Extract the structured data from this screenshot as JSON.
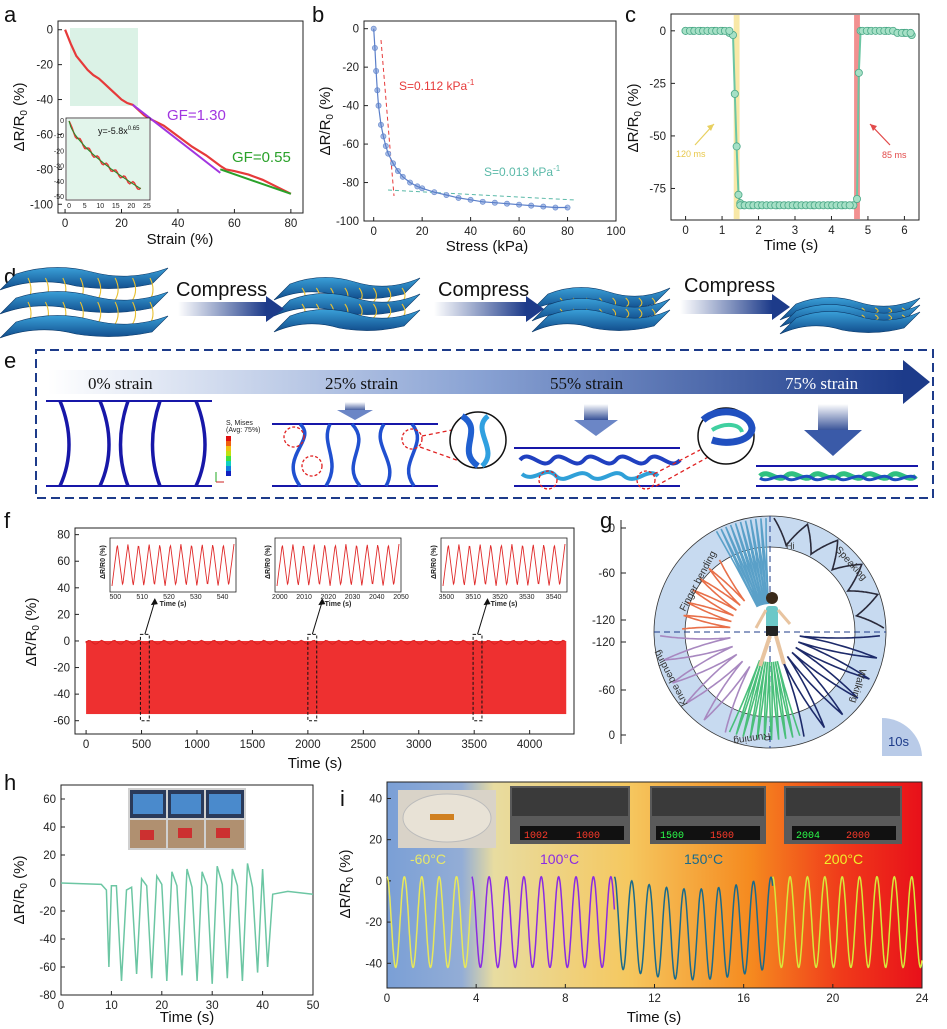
{
  "panels": {
    "a": "a",
    "b": "b",
    "c": "c",
    "d": "d",
    "e": "e",
    "f": "f",
    "g": "g",
    "h": "h",
    "i": "i"
  },
  "colors": {
    "red": "#e63a3a",
    "teal": "#6cc6a3",
    "blue": "#5b7fc9",
    "purple": "#a135e0",
    "green": "#2aa12a",
    "navy": "#1f3b9a",
    "dashblue": "#1d3b8a"
  },
  "chart_data": [
    {
      "id": "a",
      "type": "line",
      "xlabel": "Strain (%)",
      "ylabel": "ΔR/R0 (%)",
      "xlim": [
        0,
        80
      ],
      "ylim": [
        -100,
        0
      ],
      "xticks": [
        0,
        20,
        40,
        60,
        80
      ],
      "yticks": [
        0,
        -20,
        -40,
        -60,
        -80,
        -100
      ],
      "x": [
        0,
        2,
        4,
        6,
        8,
        10,
        12,
        14,
        16,
        18,
        20,
        22,
        24,
        26,
        28,
        30,
        35,
        40,
        45,
        50,
        55,
        57,
        60,
        65,
        70,
        75,
        80
      ],
      "y": [
        0,
        -8,
        -15,
        -19,
        -23,
        -26,
        -28,
        -31,
        -34,
        -37,
        -40,
        -42,
        -43,
        -46,
        -49,
        -51,
        -55,
        -61,
        -67,
        -72,
        -78,
        -80,
        -81,
        -83,
        -86,
        -90,
        -94
      ],
      "annotations": [
        "GF=1.30",
        "GF=0.55"
      ],
      "inset": {
        "label": "y=-5.8x",
        "exponent": "0.65",
        "xticks": [
          0,
          5,
          10,
          15,
          20,
          25
        ],
        "yticks": [
          0,
          -10,
          -20,
          -30,
          -40,
          -50
        ]
      }
    },
    {
      "id": "b",
      "type": "line",
      "xlabel": "Stress (kPa)",
      "ylabel": "ΔR/R0 (%)",
      "xlim": [
        0,
        100
      ],
      "ylim": [
        -100,
        0
      ],
      "xticks": [
        0,
        20,
        40,
        60,
        80,
        100
      ],
      "yticks": [
        0,
        -20,
        -40,
        -60,
        -80,
        -100
      ],
      "x": [
        0,
        0.5,
        1,
        1.5,
        2,
        3,
        4,
        5,
        6,
        8,
        10,
        12,
        15,
        18,
        20,
        25,
        30,
        35,
        40,
        45,
        50,
        55,
        60,
        65,
        70,
        75,
        80
      ],
      "y": [
        0,
        -10,
        -22,
        -32,
        -40,
        -50,
        -56,
        -61,
        -65,
        -70,
        -74,
        -77,
        -80,
        -82,
        -83,
        -85,
        -86.5,
        -88,
        -89,
        -90,
        -90.5,
        -91,
        -91.5,
        -92,
        -92.5,
        -93,
        -93
      ],
      "annotations": [
        "S=0.112 kPa",
        "S=0.013 kPa"
      ],
      "unit_exp": "-1"
    },
    {
      "id": "c",
      "type": "line",
      "xlabel": "Time (s)",
      "ylabel": "ΔR/R0 (%)",
      "xlim": [
        -0.4,
        6.4
      ],
      "ylim": [
        -90,
        8
      ],
      "xticks": [
        0,
        1,
        2,
        3,
        4,
        5,
        6
      ],
      "yticks": [
        0,
        -25,
        -50,
        -75
      ],
      "x": [
        0,
        0.2,
        0.4,
        0.6,
        0.8,
        1.0,
        1.2,
        1.3,
        1.35,
        1.4,
        1.45,
        1.5,
        1.6,
        1.8,
        2.0,
        2.5,
        3.0,
        3.5,
        4.0,
        4.3,
        4.6,
        4.7,
        4.75,
        4.8,
        5.0,
        5.5,
        6.0,
        6.2
      ],
      "y": [
        0,
        0,
        0,
        0,
        0,
        0,
        -1,
        -2,
        -30,
        -55,
        -78,
        -82,
        -83,
        -83,
        -83,
        -83,
        -83,
        -83,
        -83,
        -83,
        -83,
        -80,
        -20,
        0,
        0,
        0,
        -1,
        -2
      ],
      "annotations": [
        "120 ms",
        "85 ms"
      ]
    },
    {
      "id": "f",
      "type": "line",
      "xlabel": "Time (s)",
      "ylabel": "ΔR/R0 (%)",
      "xlim": [
        -100,
        4400
      ],
      "ylim": [
        -70,
        85
      ],
      "xticks": [
        0,
        500,
        1000,
        1500,
        2000,
        2500,
        3000,
        3500,
        4000
      ],
      "yticks": [
        80,
        60,
        40,
        20,
        0,
        -20,
        -40,
        -60
      ],
      "band": {
        "xmax": 4330,
        "top": 0,
        "bottom": -55
      },
      "insets": [
        {
          "xticks": [
            500,
            510,
            520,
            530,
            540
          ],
          "xlabel": "Time (s)",
          "ylabel": "ΔR/R0 (%)"
        },
        {
          "xticks": [
            2000,
            2010,
            2020,
            2030,
            2040,
            2050
          ],
          "xlabel": "Time (s)",
          "ylabel": "ΔR/R0 (%)"
        },
        {
          "xticks": [
            3500,
            3510,
            3520,
            3530,
            3540
          ],
          "xlabel": "Time (s)",
          "ylabel": "ΔR/R0 (%)"
        }
      ]
    },
    {
      "id": "g",
      "type": "line",
      "yticks_top": [
        0,
        -60,
        -120
      ],
      "yticks_bottom": [
        -120,
        -60,
        0
      ],
      "labels": [
        "Finger bending",
        "Speaking",
        "Hi",
        "Walking",
        "Running",
        "Knee bending"
      ],
      "scale": "10s"
    },
    {
      "id": "h",
      "type": "line",
      "xlabel": "Time (s)",
      "ylabel": "ΔR/R0 (%)",
      "xlim": [
        0,
        50
      ],
      "ylim": [
        -80,
        70
      ],
      "xticks": [
        0,
        10,
        20,
        30,
        40,
        50
      ],
      "yticks": [
        60,
        40,
        20,
        0,
        -20,
        -40,
        -60,
        -80
      ],
      "x": [
        0,
        8,
        9,
        9.5,
        10,
        11,
        12,
        13,
        14,
        15,
        16,
        17,
        18,
        19,
        20,
        21,
        22,
        23,
        24,
        25,
        26,
        27,
        28,
        29,
        30,
        31,
        32,
        33,
        34,
        35,
        36,
        37,
        38,
        39,
        40,
        41,
        42,
        45,
        50
      ],
      "y": [
        0,
        -1,
        -5,
        -60,
        -2,
        -2,
        -70,
        -5,
        -3,
        -65,
        3,
        -2,
        -68,
        5,
        -1,
        -70,
        8,
        -2,
        -66,
        10,
        -3,
        -70,
        8,
        -2,
        -72,
        12,
        -1,
        -68,
        10,
        -2,
        -70,
        14,
        -3,
        -64,
        10,
        -60,
        -8,
        -6,
        -8
      ]
    },
    {
      "id": "i",
      "type": "line",
      "xlabel": "Time (s)",
      "ylabel": "ΔR/R0 (%)",
      "xlim": [
        0,
        24
      ],
      "ylim": [
        -52,
        48
      ],
      "xticks": [
        0,
        4,
        8,
        12,
        16,
        20,
        24
      ],
      "yticks": [
        40,
        20,
        0,
        -20,
        -40
      ],
      "segments": [
        {
          "label": "-60°C",
          "x0": 0,
          "x1": 3.8,
          "color": "#e8e85a"
        },
        {
          "label": "100°C",
          "x0": 3.8,
          "x1": 10.2,
          "color": "#8a2be2"
        },
        {
          "label": "150°C",
          "x0": 10.2,
          "x1": 17.3,
          "color": "#1a6a8a"
        },
        {
          "label": "200°C",
          "x0": 17.3,
          "x1": 24,
          "color": "#d8e83a"
        }
      ],
      "displays": [
        "1002",
        "1000",
        "1500",
        "1500",
        "2004",
        "2000"
      ]
    }
  ],
  "texts": {
    "compress": "Compress",
    "strain0": "0% strain",
    "strain25": "25% strain",
    "strain55": "55% strain",
    "strain75": "75% strain",
    "legend_lines": [
      "S, Mises",
      "(Avg: 75%)"
    ]
  }
}
